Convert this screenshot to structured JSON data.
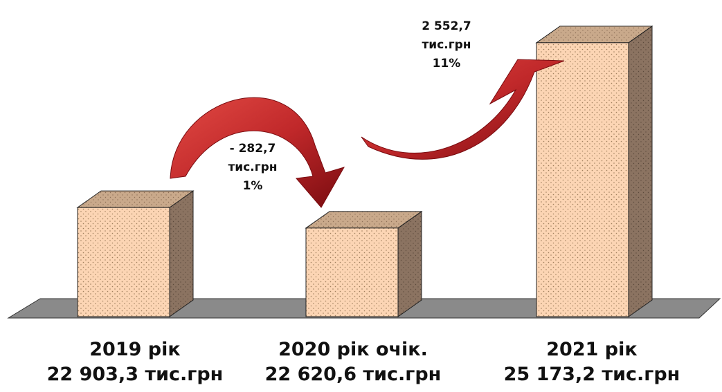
{
  "chart_data": {
    "type": "bar",
    "categories": [
      "2019 рік",
      "2020 рік очік.",
      "2021 рік"
    ],
    "values": [
      22903.3,
      22620.6,
      25173.2
    ],
    "value_labels": [
      "22 903,3 тис.грн",
      "22 620,6 тис.грн",
      "25 173,2 тис.грн"
    ],
    "changes": [
      {
        "from": "2019 рік",
        "to": "2020 рік очік.",
        "amount": "- 282,7",
        "unit": "тис.грн",
        "percent": "1%",
        "direction": "down"
      },
      {
        "from": "2020 рік очік.",
        "to": "2021 рік",
        "amount": "2 552,7",
        "unit": "тис.грн",
        "percent": "11%",
        "direction": "up"
      }
    ],
    "ylim": [
      21400,
      25400
    ],
    "grid": false,
    "title": "",
    "xlabel": "",
    "ylabel": "",
    "colors": {
      "bar_front": "#fcd5b4",
      "bar_side": "#8b7361",
      "bar_top": "#c9a98b",
      "dots": "#a0805e",
      "floor": "#8a8a8a",
      "arrow": "#c0282a"
    }
  }
}
